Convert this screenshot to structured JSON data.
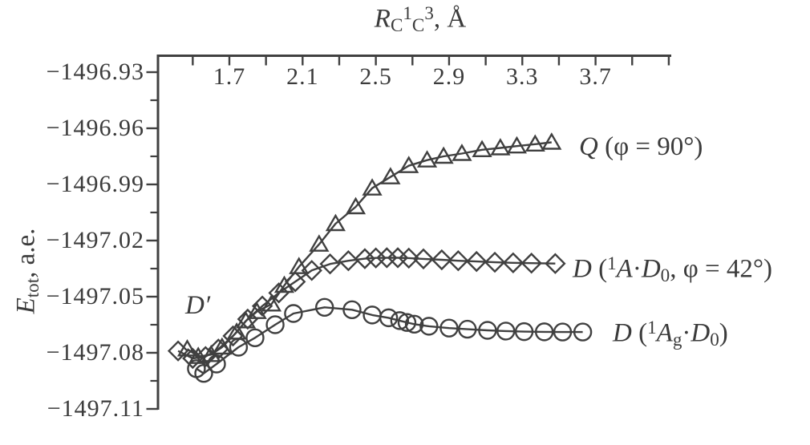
{
  "figure": {
    "background": "#ffffff",
    "ink_color": "#404040",
    "text_color": "#3b3b3b"
  },
  "chart_data": {
    "type": "line",
    "grid": false,
    "legend_position": "right-of-curve-ends",
    "x_axis": {
      "title_text": "RC1C3, Å",
      "title_rich": [
        {
          "t": "R",
          "i": true
        },
        {
          "t": "C",
          "sub": true
        },
        {
          "t": "1",
          "sup": true
        },
        {
          "t": "C",
          "sub": true
        },
        {
          "t": "3",
          "sup": true
        },
        {
          "t": ", Å"
        }
      ],
      "unit": "Å",
      "range": [
        1.31,
        4.12
      ],
      "minor_tick_start": 1.5,
      "minor_tick_step": 0.2,
      "minor_tick_end": 4.1,
      "tick_labels": [
        "1.7",
        "2.1",
        "2.5",
        "2.9",
        "3.3",
        "3.7"
      ],
      "label_values": [
        1.7,
        2.1,
        2.5,
        2.9,
        3.3,
        3.7
      ]
    },
    "y_axis": {
      "title_text": "Etot, a.e.",
      "title_rich": [
        {
          "t": "E",
          "i": true
        },
        {
          "t": "tot",
          "sub": true
        },
        {
          "t": ", a.e."
        }
      ],
      "unit": "a.e.",
      "range": [
        -1497.12,
        -1496.92
      ],
      "major_ticks": [
        -1496.93,
        -1496.96,
        -1496.99,
        -1497.02,
        -1497.05,
        -1497.08,
        -1497.11
      ],
      "major_tick_labels": [
        "−1496.93",
        "−1496.96",
        "−1496.99",
        "−1497.02",
        "−1497.05",
        "−1497.08",
        "−1497.11"
      ],
      "minor_ticks": [
        -1496.945,
        -1496.975,
        -1497.005,
        -1497.035,
        -1497.065,
        -1497.095
      ]
    },
    "annotation": {
      "text": "D′",
      "rich": [
        {
          "t": "D",
          "i": true
        },
        {
          "t": "′",
          "i": true
        }
      ],
      "at": {
        "x": 1.47,
        "y": -1497.056
      }
    },
    "series": [
      {
        "id": "q",
        "name": "Q (φ = 90°)",
        "marker": "triangle",
        "label_rich": [
          {
            "t": "Q",
            "i": true
          },
          {
            "t": " (φ = 90°)"
          }
        ],
        "points": [
          [
            1.47,
            -1497.078
          ],
          [
            1.53,
            -1497.082
          ],
          [
            1.6,
            -1497.081
          ],
          [
            1.66,
            -1497.077
          ],
          [
            1.74,
            -1497.069
          ],
          [
            1.79,
            -1497.063
          ],
          [
            1.85,
            -1497.058
          ],
          [
            1.93,
            -1497.054
          ],
          [
            2.0,
            -1497.044
          ],
          [
            2.08,
            -1497.034
          ],
          [
            2.19,
            -1497.022
          ],
          [
            2.28,
            -1497.011
          ],
          [
            2.39,
            -1497.002
          ],
          [
            2.48,
            -1496.992
          ],
          [
            2.58,
            -1496.986
          ],
          [
            2.68,
            -1496.98
          ],
          [
            2.78,
            -1496.977
          ],
          [
            2.87,
            -1496.975
          ],
          [
            2.97,
            -1496.9735
          ],
          [
            3.08,
            -1496.9715
          ],
          [
            3.18,
            -1496.9705
          ],
          [
            3.27,
            -1496.9695
          ],
          [
            3.37,
            -1496.9685
          ],
          [
            3.46,
            -1496.9675
          ]
        ]
      },
      {
        "id": "d42",
        "name": "D (1A·D0, φ = 42°)",
        "marker": "diamond",
        "label_rich": [
          {
            "t": "D",
            "i": true
          },
          {
            "t": " ("
          },
          {
            "t": "1",
            "sup": true
          },
          {
            "t": "A",
            "i": true
          },
          {
            "t": "·"
          },
          {
            "t": "D",
            "i": true
          },
          {
            "t": "0",
            "sub": true
          },
          {
            "t": ", φ = 42°)"
          }
        ],
        "points": [
          [
            1.42,
            -1497.079
          ],
          [
            1.5,
            -1497.083
          ],
          [
            1.57,
            -1497.082
          ],
          [
            1.64,
            -1497.078
          ],
          [
            1.72,
            -1497.071
          ],
          [
            1.8,
            -1497.062
          ],
          [
            1.88,
            -1497.055
          ],
          [
            1.97,
            -1497.048
          ],
          [
            2.06,
            -1497.042
          ],
          [
            2.15,
            -1497.036
          ],
          [
            2.25,
            -1497.0325
          ],
          [
            2.35,
            -1497.0308
          ],
          [
            2.44,
            -1497.0297
          ],
          [
            2.5,
            -1497.0293
          ],
          [
            2.56,
            -1497.0292
          ],
          [
            2.62,
            -1497.0292
          ],
          [
            2.68,
            -1497.0294
          ],
          [
            2.76,
            -1497.0298
          ],
          [
            2.86,
            -1497.0303
          ],
          [
            2.95,
            -1497.0308
          ],
          [
            3.05,
            -1497.0312
          ],
          [
            3.15,
            -1497.0316
          ],
          [
            3.25,
            -1497.0319
          ],
          [
            3.35,
            -1497.0321
          ],
          [
            3.48,
            -1497.0323
          ]
        ]
      },
      {
        "id": "dg",
        "name": "D (1Ag·D0)",
        "marker": "circle",
        "label_rich": [
          {
            "t": "D",
            "i": true
          },
          {
            "t": " ("
          },
          {
            "t": "1",
            "sup": true
          },
          {
            "t": "A",
            "i": true
          },
          {
            "t": "g",
            "sub": true
          },
          {
            "t": "·"
          },
          {
            "t": "D",
            "i": true
          },
          {
            "t": "0",
            "sub": true
          },
          {
            "t": ")"
          }
        ],
        "points": [
          [
            1.52,
            -1497.0885
          ],
          [
            1.56,
            -1497.091
          ],
          [
            1.63,
            -1497.086
          ],
          [
            1.75,
            -1497.077
          ],
          [
            1.84,
            -1497.072
          ],
          [
            1.95,
            -1497.065
          ],
          [
            2.05,
            -1497.059
          ],
          [
            2.22,
            -1497.0557
          ],
          [
            2.37,
            -1497.057
          ],
          [
            2.48,
            -1497.0598
          ],
          [
            2.57,
            -1497.0613
          ],
          [
            2.63,
            -1497.0628
          ],
          [
            2.67,
            -1497.0638
          ],
          [
            2.71,
            -1497.0647
          ],
          [
            2.79,
            -1497.0658
          ],
          [
            2.9,
            -1497.0668
          ],
          [
            3.0,
            -1497.0674
          ],
          [
            3.11,
            -1497.068
          ],
          [
            3.21,
            -1497.0684
          ],
          [
            3.31,
            -1497.0687
          ],
          [
            3.42,
            -1497.0688
          ],
          [
            3.52,
            -1497.0689
          ],
          [
            3.63,
            -1497.0689
          ]
        ]
      }
    ]
  }
}
